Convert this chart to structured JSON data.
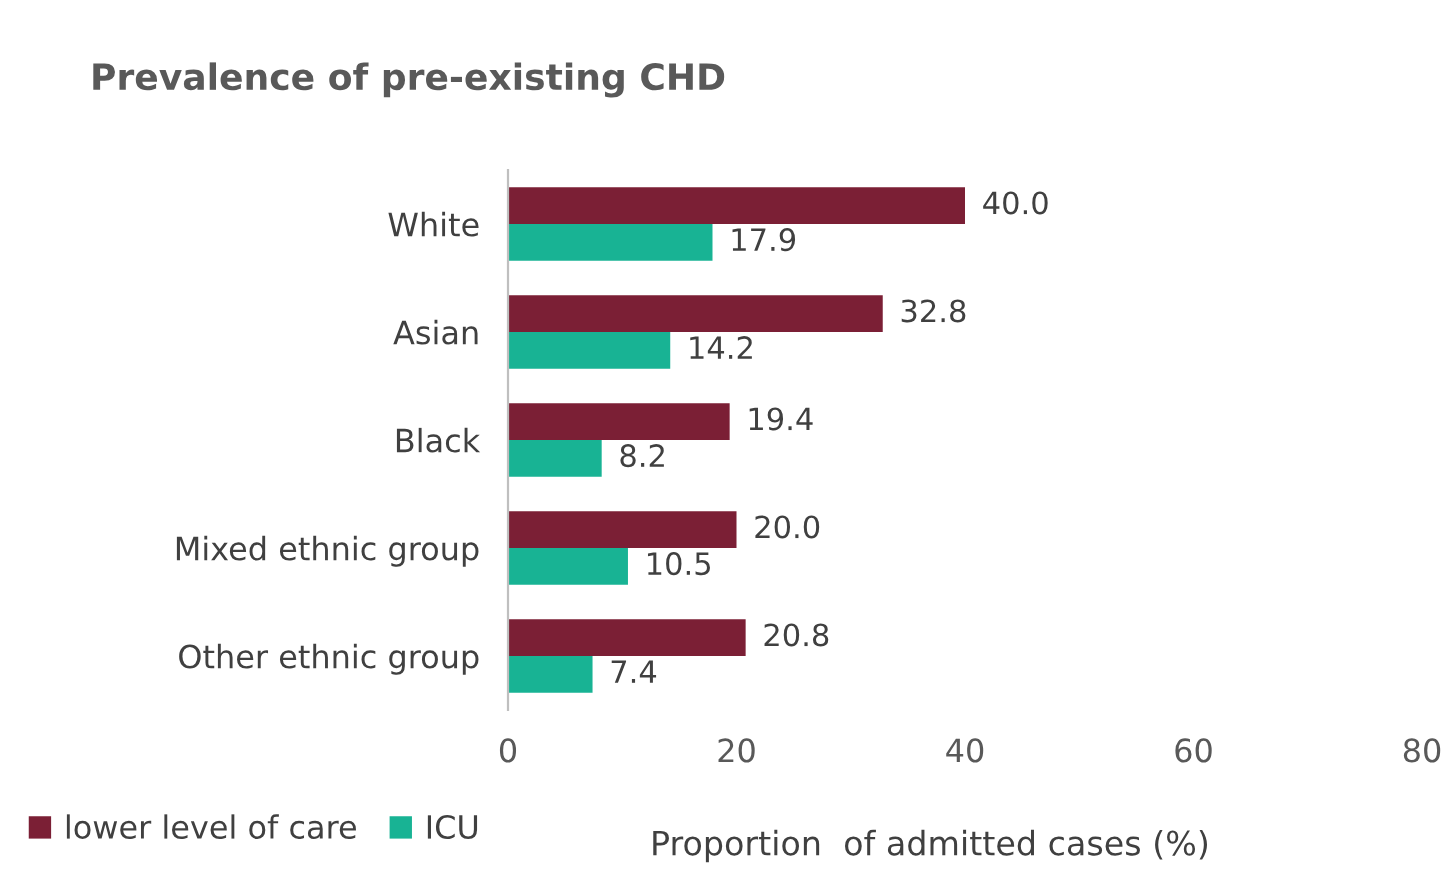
{
  "chart_data": {
    "type": "bar",
    "orientation": "horizontal",
    "title": "Prevalence of pre-existing CHD",
    "xlabel": "Proportion  of admitted cases (%)",
    "categories": [
      "White",
      "Asian",
      "Black",
      "Mixed ethnic group",
      "Other ethnic group"
    ],
    "series": [
      {
        "name": "lower level of care",
        "color": "#7b1f35",
        "values": [
          40.0,
          32.8,
          19.4,
          20.0,
          20.8
        ],
        "value_labels": [
          "40.0",
          "32.8",
          "19.4",
          "20.0",
          "20.8"
        ]
      },
      {
        "name": "ICU",
        "color": "#18b394",
        "values": [
          17.9,
          14.2,
          8.2,
          10.5,
          7.4
        ],
        "value_labels": [
          "17.9",
          "14.2",
          "8.2",
          "10.5",
          "7.4"
        ]
      }
    ],
    "xlim": [
      0,
      80
    ],
    "xticks": [
      0,
      20,
      40,
      60,
      80
    ],
    "grid": false,
    "legend": "bottom left"
  }
}
